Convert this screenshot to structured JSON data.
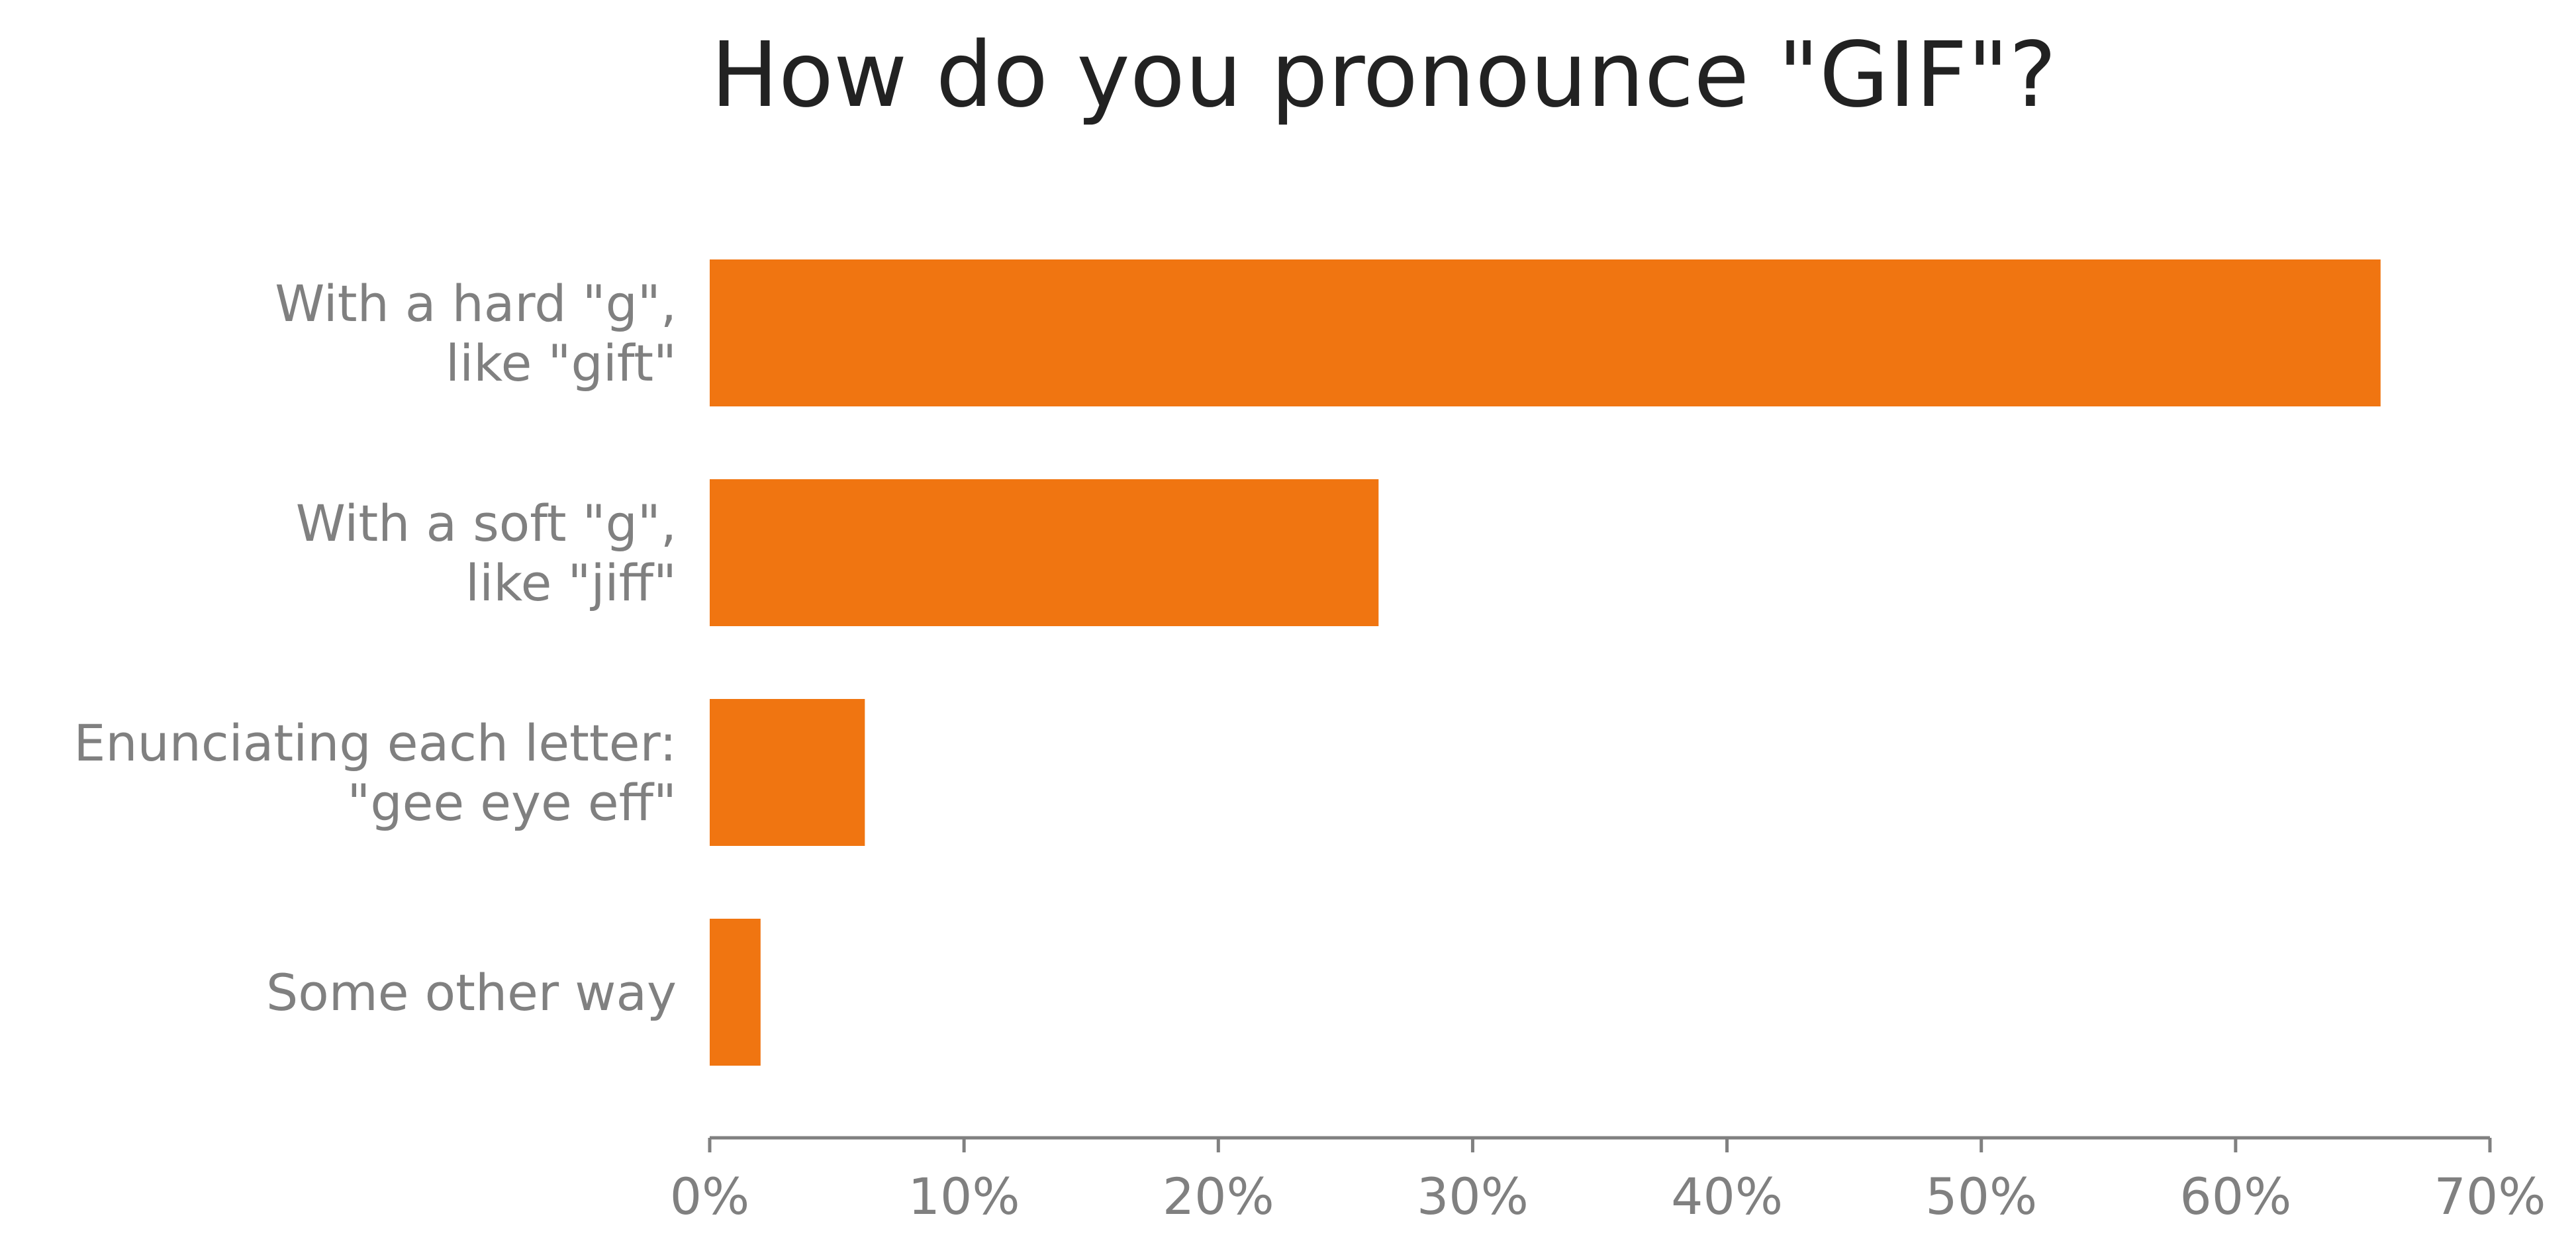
{
  "chart_data": {
    "type": "bar",
    "orientation": "horizontal",
    "title": "How do you pronounce \"GIF\"?",
    "xlabel": "",
    "ylabel": "",
    "categories": [
      [
        "With a hard \"g\",",
        "like \"gift\""
      ],
      [
        "With a soft \"g\",",
        "like \"jiff\""
      ],
      [
        "Enunciating each letter:",
        "\"gee eye eff\""
      ],
      [
        "Some other way"
      ]
    ],
    "values": [
      65.7,
      26.3,
      6.1,
      2.0
    ],
    "xlim": [
      0,
      70
    ],
    "xticks": [
      0,
      10,
      20,
      30,
      40,
      50,
      60,
      70
    ],
    "xtick_labels": [
      "0%",
      "10%",
      "20%",
      "30%",
      "40%",
      "50%",
      "60%",
      "70%"
    ],
    "bar_color": "#F07511",
    "text_color": "#808080",
    "title_color": "#222222",
    "grid": false,
    "legend": "none"
  }
}
